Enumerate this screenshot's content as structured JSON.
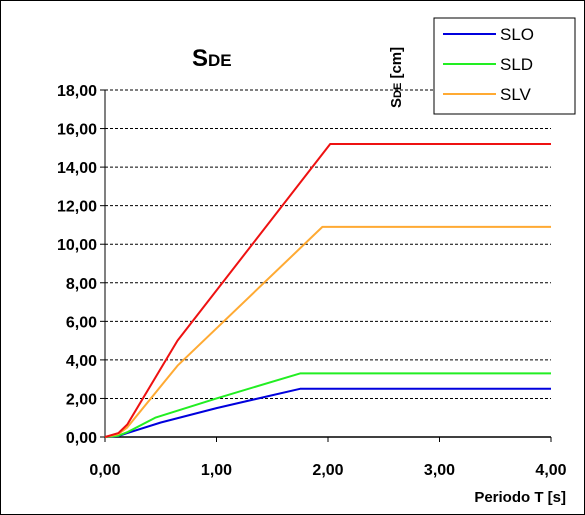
{
  "chart_data": {
    "type": "line",
    "title": "SDE",
    "title_parts": {
      "main": "S",
      "sub": "DE"
    },
    "xlabel": "Periodo T [s]",
    "ylabel": "SDE [cm]",
    "ylabel_parts": {
      "main": "S",
      "sub": "DE",
      "unit": " [cm]"
    },
    "xlim": [
      0,
      4
    ],
    "ylim": [
      0,
      18
    ],
    "x_ticks": [
      "0,00",
      "1,00",
      "2,00",
      "3,00",
      "4,00"
    ],
    "y_ticks": [
      "0,00",
      "2,00",
      "4,00",
      "6,00",
      "8,00",
      "10,00",
      "12,00",
      "14,00",
      "16,00",
      "18,00"
    ],
    "grid": "horizontal-dashed",
    "legend": "top-right",
    "series": [
      {
        "name": "SLO",
        "color": "#0000dd",
        "x": [
          0,
          0.12,
          0.2,
          0.5,
          1.0,
          1.75,
          4.0
        ],
        "y": [
          0,
          0.05,
          0.2,
          0.75,
          1.5,
          2.5,
          2.5
        ]
      },
      {
        "name": "SLD",
        "color": "#22ee22",
        "x": [
          0,
          0.12,
          0.2,
          0.45,
          1.0,
          1.75,
          4.0
        ],
        "y": [
          0,
          0.07,
          0.25,
          1.0,
          2.0,
          3.3,
          3.3
        ]
      },
      {
        "name": "SLV",
        "color": "#ffaa33",
        "x": [
          0,
          0.12,
          0.2,
          0.65,
          1.95,
          4.0
        ],
        "y": [
          0,
          0.15,
          0.5,
          3.7,
          10.9,
          10.9
        ]
      },
      {
        "name": "",
        "color": "#ee1111",
        "x": [
          0,
          0.12,
          0.2,
          0.65,
          2.02,
          4.0
        ],
        "y": [
          0,
          0.2,
          0.65,
          5.0,
          15.2,
          15.2
        ]
      }
    ]
  }
}
